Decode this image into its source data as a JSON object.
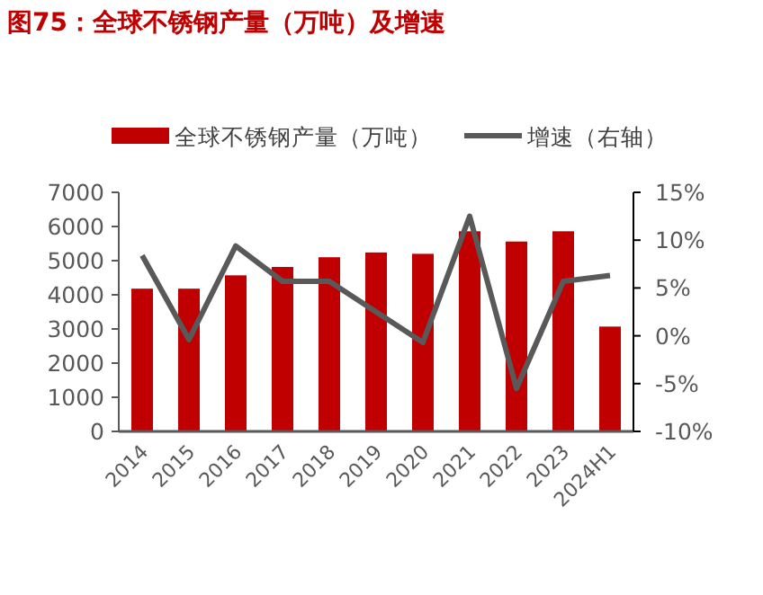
{
  "chart_data": {
    "type": "bar",
    "title": "图75：全球不锈钢产量（万吨）及增速",
    "categories": [
      "2014",
      "2015",
      "2016",
      "2017",
      "2018",
      "2019",
      "2020",
      "2021",
      "2022",
      "2023",
      "2024H1"
    ],
    "series": [
      {
        "name": "全球不锈钢产量（万吨）",
        "color": "#c00000",
        "values": [
          4180,
          4180,
          4570,
          4815,
          5100,
          5240,
          5200,
          5860,
          5560,
          5860,
          3070
        ]
      },
      {
        "name": "增速（右轴）",
        "type": "line",
        "axis": "y2",
        "color": "#595959",
        "values": [
          8.4,
          -0.4,
          9.4,
          5.7,
          5.7,
          2.5,
          -0.7,
          12.5,
          -5.5,
          5.7,
          6.3
        ]
      }
    ],
    "ylim": [
      0,
      7000
    ],
    "yticks": [
      0,
      1000,
      2000,
      3000,
      4000,
      5000,
      6000,
      7000
    ],
    "y2lim": [
      -10,
      15
    ],
    "y2ticks": [
      {
        "value": -10,
        "label": "-10%"
      },
      {
        "value": -5,
        "label": "-5%"
      },
      {
        "value": 0,
        "label": "0%"
      },
      {
        "value": 5,
        "label": "5%"
      },
      {
        "value": 10,
        "label": "10%"
      },
      {
        "value": 15,
        "label": "15%"
      }
    ],
    "legend": "top",
    "grid": false
  }
}
